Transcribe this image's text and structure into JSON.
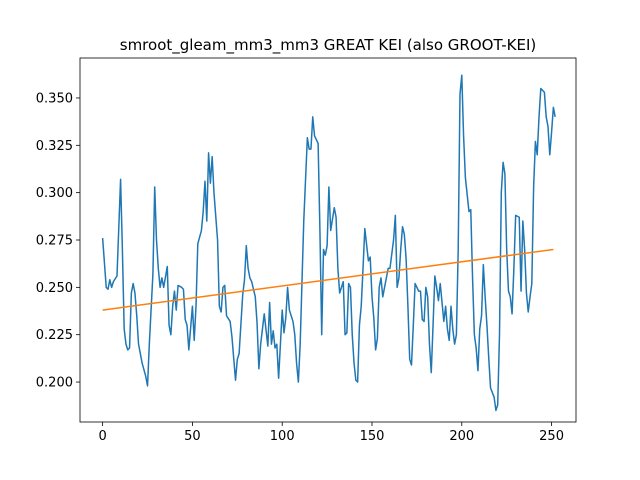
{
  "chart_data": {
    "type": "line",
    "title": "smroot_gleam_mm3_mm3 GREAT KEI (also GROOT-KEI)",
    "xlim": [
      -12.6,
      263.6
    ],
    "xticks": [
      0,
      50,
      100,
      150,
      200,
      250
    ],
    "ylim": [
      0.1789,
      0.3711
    ],
    "yticks": [
      {
        "value": 0.2,
        "label": "0.200"
      },
      {
        "value": 0.225,
        "label": "0.225"
      },
      {
        "value": 0.25,
        "label": "0.250"
      },
      {
        "value": 0.275,
        "label": "0.275"
      },
      {
        "value": 0.3,
        "label": "0.300"
      },
      {
        "value": 0.325,
        "label": "0.325"
      },
      {
        "value": 0.35,
        "label": "0.350"
      }
    ],
    "series": [
      {
        "color": "#1f77b4",
        "x": [
          0,
          2,
          3,
          4,
          5,
          6,
          8,
          10,
          11,
          12,
          13,
          14,
          15,
          16,
          17,
          18,
          19,
          20,
          22,
          24,
          25,
          26,
          28,
          29,
          30,
          31,
          32,
          33,
          34,
          36,
          37,
          38,
          39,
          40,
          41,
          42,
          44,
          45,
          46,
          47,
          48,
          50,
          51,
          52,
          53,
          55,
          56,
          57,
          58,
          59,
          60,
          61,
          62,
          64,
          65,
          66,
          67,
          68,
          69,
          71,
          72,
          74,
          75,
          76,
          78,
          79,
          80,
          81,
          82,
          83,
          85,
          86,
          87,
          88,
          89,
          90,
          92,
          93,
          94,
          95,
          96,
          97,
          98,
          100,
          101,
          102,
          103,
          104,
          106,
          107,
          108,
          109,
          110,
          112,
          114,
          115,
          116,
          117,
          118,
          120,
          121,
          122,
          123,
          124,
          125,
          126,
          127,
          129,
          130,
          131,
          132,
          134,
          135,
          136,
          137,
          138,
          139,
          140,
          141,
          142,
          143,
          144,
          145,
          146,
          148,
          149,
          150,
          151,
          152,
          153,
          154,
          155,
          156,
          158,
          159,
          160,
          162,
          163,
          164,
          165,
          166,
          167,
          168,
          169,
          170,
          171,
          172,
          173,
          174,
          176,
          177,
          178,
          179,
          180,
          181,
          182,
          183,
          184,
          185,
          186,
          187,
          188,
          190,
          191,
          192,
          193,
          194,
          195,
          196,
          197,
          198,
          199,
          200,
          201,
          202,
          204,
          205,
          206,
          207,
          208,
          209,
          210,
          211,
          212,
          213,
          214,
          215,
          216,
          218,
          219,
          220,
          221,
          222,
          223,
          224,
          225,
          226,
          227,
          228,
          229,
          230,
          232,
          233,
          234,
          235,
          236,
          237,
          238,
          239,
          240,
          241,
          242,
          243,
          244,
          246,
          247,
          248,
          249,
          250,
          251,
          252
        ],
        "values": [
          0.276,
          0.25,
          0.249,
          0.254,
          0.25,
          0.253,
          0.256,
          0.307,
          0.27,
          0.228,
          0.22,
          0.217,
          0.218,
          0.247,
          0.252,
          0.247,
          0.235,
          0.22,
          0.21,
          0.203,
          0.198,
          0.22,
          0.257,
          0.303,
          0.275,
          0.26,
          0.25,
          0.255,
          0.25,
          0.261,
          0.23,
          0.225,
          0.24,
          0.248,
          0.238,
          0.251,
          0.25,
          0.249,
          0.233,
          0.23,
          0.217,
          0.24,
          0.222,
          0.24,
          0.273,
          0.28,
          0.29,
          0.306,
          0.285,
          0.321,
          0.305,
          0.319,
          0.3,
          0.275,
          0.24,
          0.237,
          0.25,
          0.251,
          0.235,
          0.232,
          0.224,
          0.201,
          0.212,
          0.215,
          0.246,
          0.254,
          0.272,
          0.26,
          0.255,
          0.253,
          0.245,
          0.231,
          0.207,
          0.22,
          0.228,
          0.236,
          0.219,
          0.242,
          0.22,
          0.227,
          0.218,
          0.22,
          0.202,
          0.238,
          0.226,
          0.234,
          0.25,
          0.238,
          0.232,
          0.225,
          0.21,
          0.2,
          0.22,
          0.285,
          0.329,
          0.323,
          0.323,
          0.34,
          0.33,
          0.326,
          0.28,
          0.225,
          0.27,
          0.267,
          0.272,
          0.303,
          0.28,
          0.292,
          0.287,
          0.26,
          0.247,
          0.253,
          0.225,
          0.226,
          0.252,
          0.25,
          0.225,
          0.21,
          0.201,
          0.2,
          0.23,
          0.24,
          0.26,
          0.281,
          0.264,
          0.266,
          0.245,
          0.234,
          0.217,
          0.223,
          0.25,
          0.255,
          0.245,
          0.255,
          0.26,
          0.26,
          0.275,
          0.288,
          0.25,
          0.255,
          0.27,
          0.282,
          0.278,
          0.265,
          0.24,
          0.212,
          0.209,
          0.23,
          0.252,
          0.248,
          0.248,
          0.233,
          0.232,
          0.25,
          0.245,
          0.22,
          0.205,
          0.23,
          0.256,
          0.25,
          0.243,
          0.252,
          0.232,
          0.24,
          0.228,
          0.222,
          0.24,
          0.228,
          0.22,
          0.225,
          0.27,
          0.352,
          0.362,
          0.33,
          0.308,
          0.29,
          0.291,
          0.255,
          0.225,
          0.218,
          0.206,
          0.228,
          0.235,
          0.262,
          0.245,
          0.23,
          0.213,
          0.197,
          0.192,
          0.185,
          0.188,
          0.225,
          0.3,
          0.316,
          0.31,
          0.27,
          0.248,
          0.245,
          0.236,
          0.26,
          0.288,
          0.287,
          0.248,
          0.285,
          0.27,
          0.247,
          0.237,
          0.245,
          0.252,
          0.303,
          0.327,
          0.32,
          0.34,
          0.355,
          0.353,
          0.34,
          0.335,
          0.32,
          0.332,
          0.345,
          0.34
        ]
      },
      {
        "color": "#ff7f0e",
        "x": [
          0,
          251
        ],
        "values": [
          0.238,
          0.27
        ]
      }
    ]
  }
}
